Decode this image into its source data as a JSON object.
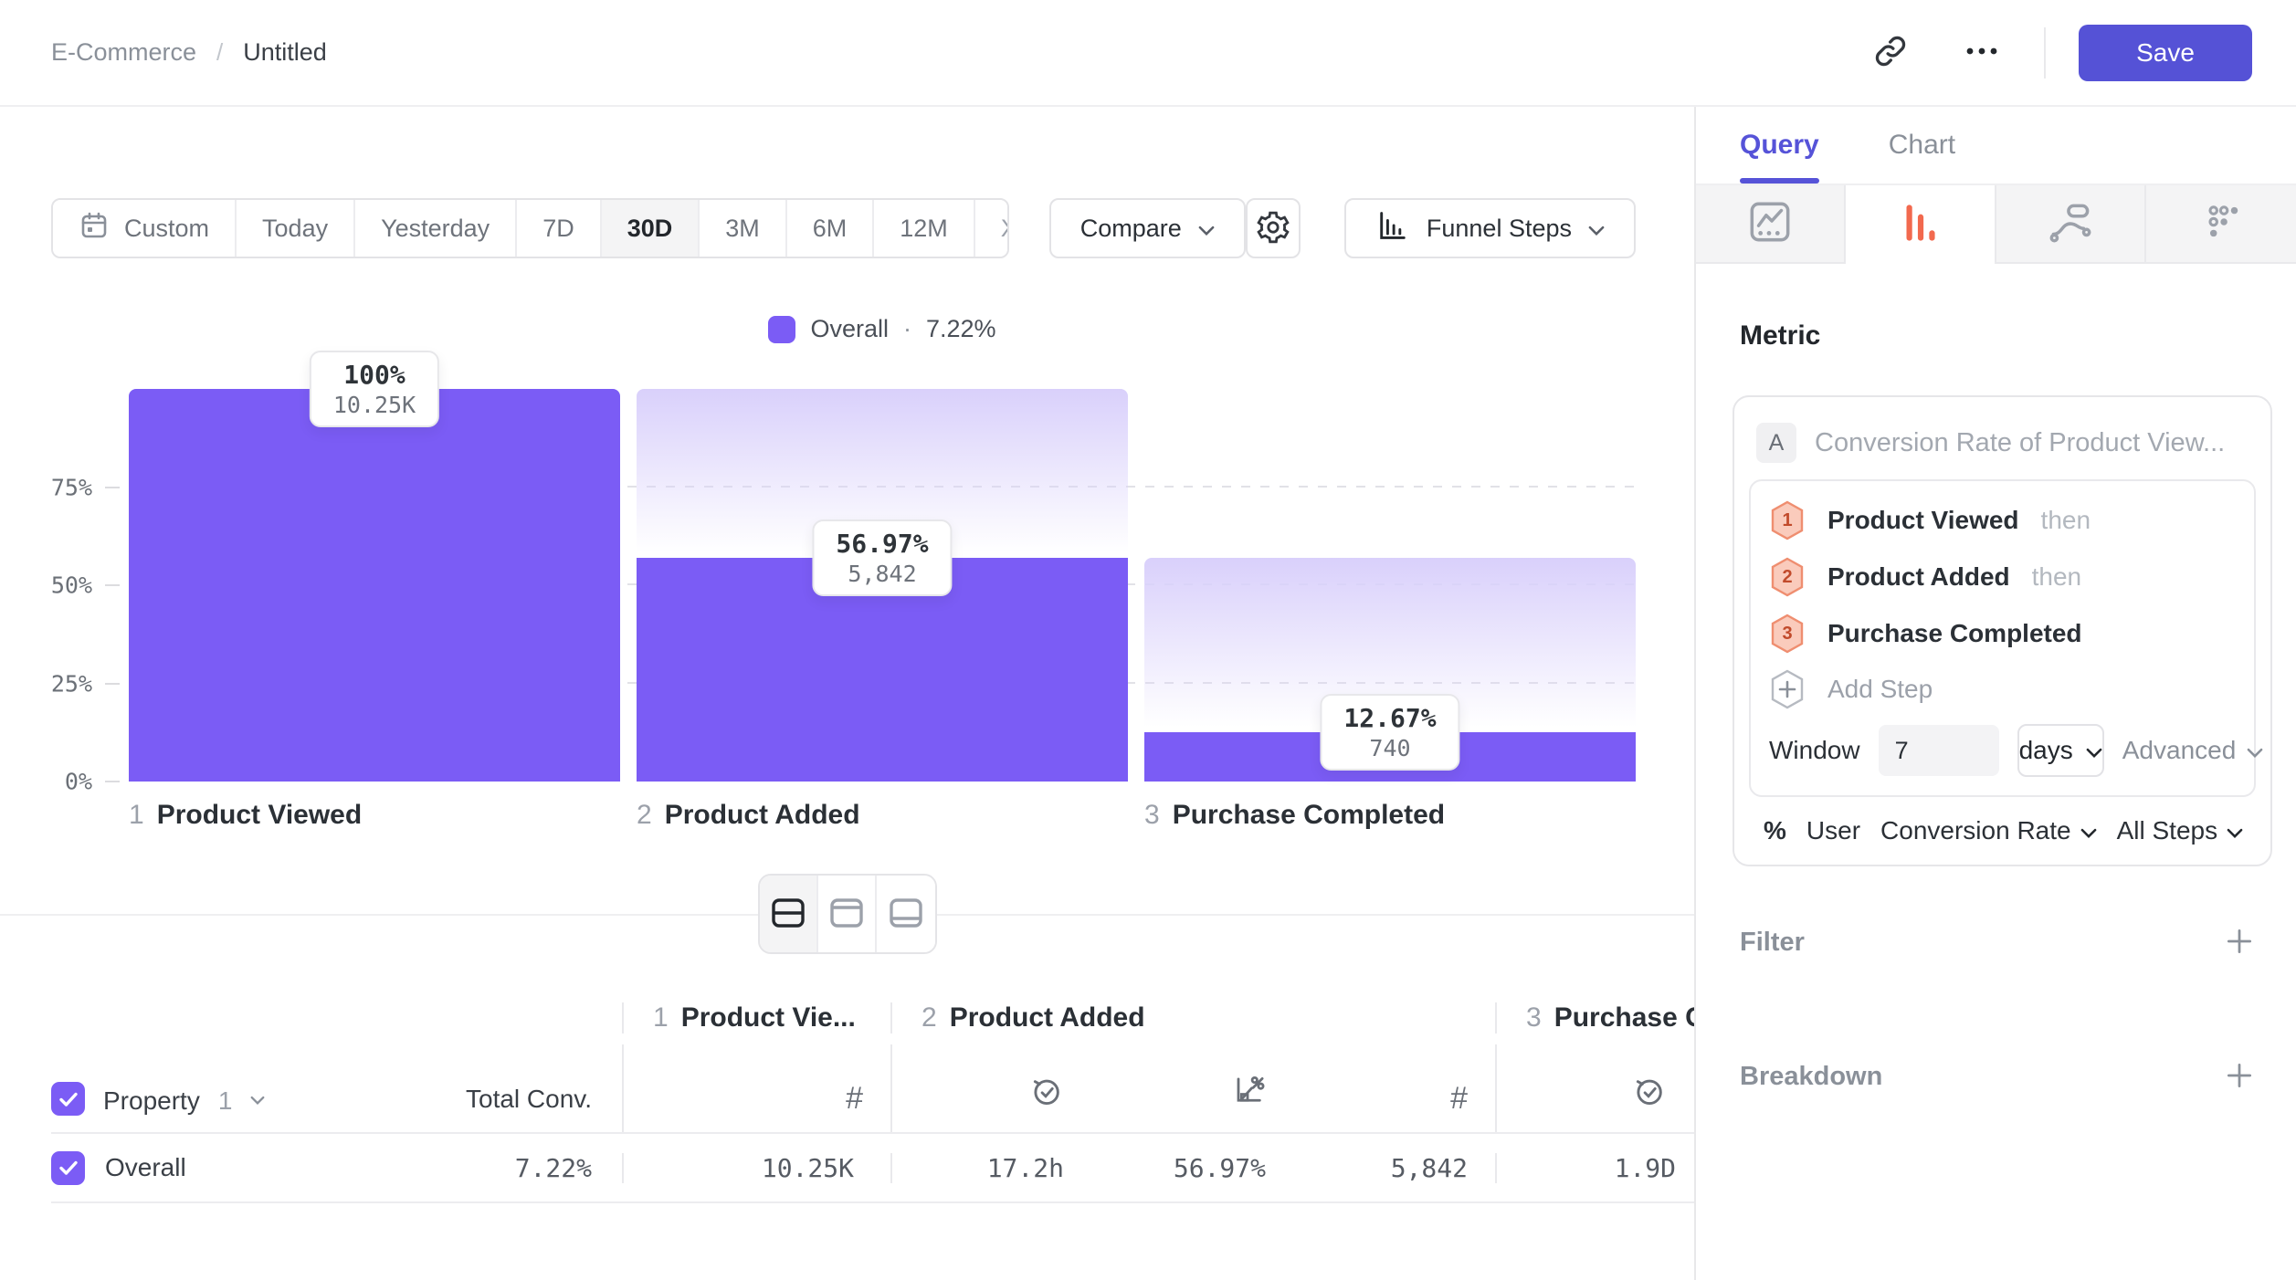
{
  "header": {
    "breadcrumb": {
      "parent": "E-Commerce",
      "separator": "/",
      "current": "Untitled"
    },
    "save_label": "Save"
  },
  "toolbar": {
    "date_ranges": [
      "Custom",
      "Today",
      "Yesterday",
      "7D",
      "30D",
      "3M",
      "6M",
      "12M",
      "XTD"
    ],
    "active_range": "30D",
    "compare_label": "Compare",
    "chart_type_label": "Funnel Steps"
  },
  "legend": {
    "label": "Overall",
    "separator": "·",
    "value": "7.22%"
  },
  "funnel": {
    "y_ticks": [
      "75%",
      "50%",
      "25%",
      "0%"
    ],
    "steps": [
      {
        "index": "1",
        "name": "Product Viewed",
        "pct": "100%",
        "count": "10.25K",
        "pct_value": 100,
        "prev_pct": 100
      },
      {
        "index": "2",
        "name": "Product Added",
        "pct": "56.97%",
        "count": "5,842",
        "pct_value": 56.97,
        "prev_pct": 100
      },
      {
        "index": "3",
        "name": "Purchase Completed",
        "pct": "12.67%",
        "count": "740",
        "pct_value": 12.67,
        "prev_pct": 56.97
      }
    ]
  },
  "table": {
    "property_label": "Property",
    "property_index": "1",
    "total_conv_label": "Total Conv.",
    "columns": [
      {
        "index": "1",
        "name": "Product Vie..."
      },
      {
        "index": "2",
        "name": "Product Added"
      },
      {
        "index": "3",
        "name": "Purchase C"
      }
    ],
    "row": {
      "name": "Overall",
      "total_conv": "7.22%",
      "cells": [
        "10.25K",
        "17.2h",
        "56.97%",
        "5,842",
        "1.9D"
      ]
    }
  },
  "sidebar": {
    "tabs": [
      {
        "label": "Query",
        "active": true
      },
      {
        "label": "Chart",
        "active": false
      }
    ],
    "metric_heading": "Metric",
    "metric": {
      "badge": "A",
      "title": "Conversion Rate of Product View...",
      "steps": [
        {
          "num": "1",
          "name": "Product Viewed",
          "suffix": "then"
        },
        {
          "num": "2",
          "name": "Product Added",
          "suffix": "then"
        },
        {
          "num": "3",
          "name": "Purchase Completed",
          "suffix": ""
        }
      ],
      "add_step": "Add Step",
      "window_label": "Window",
      "window_value": "7",
      "window_unit": "days",
      "advanced_label": "Advanced",
      "measure": {
        "pct": "%",
        "user": "User",
        "metric": "Conversion Rate",
        "steps": "All Steps"
      }
    },
    "sections": [
      {
        "label": "Filter"
      },
      {
        "label": "Breakdown"
      }
    ]
  },
  "colors": {
    "accent_purple": "#5552d6",
    "bar_purple": "#7b5cf5",
    "active_tab_orange": "#f2694e",
    "step_badge_fill": "#facbbc",
    "step_badge_stroke": "#ef8e70"
  },
  "chart_data": {
    "type": "bar",
    "subtype": "funnel",
    "categories": [
      "1 Product Viewed",
      "2 Product Added",
      "3 Purchase Completed"
    ],
    "series": [
      {
        "name": "Overall",
        "conversion_pct": [
          100,
          56.97,
          12.67
        ],
        "count_labels": [
          "10.25K",
          "5,842",
          "740"
        ],
        "counts": [
          10250,
          5842,
          740
        ]
      }
    ],
    "overall_conversion": "7.22%",
    "ylabel": "",
    "xlabel": "",
    "ylim": [
      0,
      100
    ],
    "y_ticks": [
      "0%",
      "25%",
      "50%",
      "75%"
    ],
    "grid": "dashed-horizontal",
    "legend_position": "top-center"
  }
}
